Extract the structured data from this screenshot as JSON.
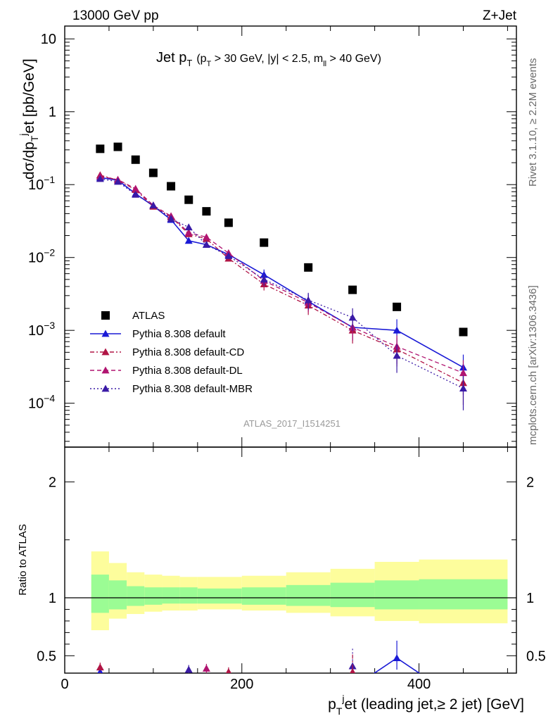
{
  "header": {
    "left": "13000 GeV pp",
    "right": "Z+Jet"
  },
  "side_labels": {
    "rivet": "Rivet 3.1.10, ≥ 2.2M events",
    "mcplots": "mcplots.cern.ch [arXiv:1306.3436]"
  },
  "analysis_id": "ATLAS_2017_I1514251",
  "chart_data": [
    {
      "type": "scatter",
      "panel": "main",
      "title": "Jet p_T (p_T > 30 GeV, |y| < 2.5, m_ll > 40 GeV)",
      "title_parts": {
        "main": "Jet p",
        "main_sub": "T",
        "cut1": "(p",
        "cut1_sub": "T",
        "cut2": " > 30 GeV, |y| < 2.5, m",
        "cut2_sub": "ll",
        "cut3": " > 40 GeV)"
      },
      "ylabel": "dσ/dp_T^jet [pb/GeV]",
      "ylabel_parts": {
        "a": "dσ/dp",
        "b": "T",
        "c": "j",
        "d": "et [pb/GeV]"
      },
      "yscale": "log",
      "ylim": [
        2.5e-05,
        15
      ],
      "xlim": [
        0,
        510
      ],
      "y_ticks": [
        {
          "v": 0.0001,
          "label": "10",
          "exp": "−4"
        },
        {
          "v": 0.001,
          "label": "10",
          "exp": "−3"
        },
        {
          "v": 0.01,
          "label": "10",
          "exp": "−2"
        },
        {
          "v": 0.1,
          "label": "10",
          "exp": "−1"
        },
        {
          "v": 1,
          "label": "1",
          "exp": ""
        },
        {
          "v": 10,
          "label": "10",
          "exp": ""
        }
      ],
      "legend_position": "bottom-left",
      "x": [
        40,
        60,
        80,
        100,
        120,
        140,
        160,
        185,
        225,
        275,
        325,
        375,
        450
      ],
      "series": [
        {
          "name": "ATLAS",
          "color": "#000000",
          "marker": "square",
          "dash": "none",
          "values": [
            0.31,
            0.33,
            0.22,
            0.145,
            0.095,
            0.062,
            0.043,
            0.03,
            0.016,
            0.0073,
            0.0036,
            0.0021,
            0.00095
          ]
        },
        {
          "name": "Pythia 8.308 default",
          "color": "#1a1ad6",
          "marker": "triangle",
          "dash": "none",
          "values": [
            0.125,
            0.115,
            0.075,
            0.051,
            0.033,
            0.017,
            0.015,
            0.011,
            0.0058,
            0.0025,
            0.0011,
            0.001,
            0.00031
          ]
        },
        {
          "name": "Pythia 8.308 default-CD",
          "color": "#b01445",
          "marker": "triangle",
          "dash": "6,3,2,3",
          "values": [
            0.135,
            0.115,
            0.085,
            0.05,
            0.036,
            0.021,
            0.018,
            0.0097,
            0.0043,
            0.0022,
            0.001,
            0.00055,
            0.00019
          ]
        },
        {
          "name": "Pythia 8.308 default-DL",
          "color": "#b01470",
          "marker": "triangle",
          "dash": "6,4",
          "values": [
            0.13,
            0.117,
            0.088,
            0.052,
            0.037,
            0.022,
            0.019,
            0.0115,
            0.0048,
            0.0024,
            0.0011,
            0.0006,
            0.00026
          ]
        },
        {
          "name": "Pythia 8.308 default-MBR",
          "color": "#3a1aa6",
          "marker": "triangle",
          "dash": "2,3",
          "values": [
            0.12,
            0.11,
            0.073,
            0.052,
            0.034,
            0.026,
            0.015,
            0.0105,
            0.005,
            0.0026,
            0.0015,
            0.00045,
            0.00016
          ]
        }
      ]
    },
    {
      "type": "scatter",
      "panel": "ratio",
      "ylabel": "Ratio to ATLAS",
      "xlabel": "p_T^jet (leading jet,≥ 2 jet) [GeV]",
      "xlabel_parts": {
        "a": "p",
        "b": "T",
        "c": "j",
        "d": "et (leading jet,≥ 2 jet) [GeV]"
      },
      "ylim": [
        0.35,
        2.3
      ],
      "xlim": [
        0,
        510
      ],
      "y_ticks": [
        0.5,
        1,
        2
      ],
      "x_ticks": [
        0,
        200,
        400
      ],
      "bands": [
        {
          "x0": 30,
          "x1": 50,
          "lo1": 0.87,
          "hi1": 1.2,
          "lo2": 0.72,
          "hi2": 1.4
        },
        {
          "x0": 50,
          "x1": 70,
          "lo1": 0.9,
          "hi1": 1.15,
          "lo2": 0.82,
          "hi2": 1.3
        },
        {
          "x0": 70,
          "x1": 90,
          "lo1": 0.93,
          "hi1": 1.1,
          "lo2": 0.86,
          "hi2": 1.22
        },
        {
          "x0": 90,
          "x1": 110,
          "lo1": 0.94,
          "hi1": 1.09,
          "lo2": 0.88,
          "hi2": 1.2
        },
        {
          "x0": 110,
          "x1": 130,
          "lo1": 0.95,
          "hi1": 1.09,
          "lo2": 0.89,
          "hi2": 1.19
        },
        {
          "x0": 130,
          "x1": 150,
          "lo1": 0.95,
          "hi1": 1.09,
          "lo2": 0.89,
          "hi2": 1.18
        },
        {
          "x0": 150,
          "x1": 170,
          "lo1": 0.95,
          "hi1": 1.08,
          "lo2": 0.9,
          "hi2": 1.18
        },
        {
          "x0": 170,
          "x1": 200,
          "lo1": 0.95,
          "hi1": 1.08,
          "lo2": 0.9,
          "hi2": 1.18
        },
        {
          "x0": 200,
          "x1": 250,
          "lo1": 0.94,
          "hi1": 1.09,
          "lo2": 0.89,
          "hi2": 1.19
        },
        {
          "x0": 250,
          "x1": 300,
          "lo1": 0.93,
          "hi1": 1.11,
          "lo2": 0.87,
          "hi2": 1.22
        },
        {
          "x0": 300,
          "x1": 350,
          "lo1": 0.92,
          "hi1": 1.13,
          "lo2": 0.84,
          "hi2": 1.25
        },
        {
          "x0": 350,
          "x1": 400,
          "lo1": 0.9,
          "hi1": 1.15,
          "lo2": 0.8,
          "hi2": 1.31
        },
        {
          "x0": 400,
          "x1": 500,
          "lo1": 0.9,
          "hi1": 1.16,
          "lo2": 0.78,
          "hi2": 1.33
        }
      ],
      "band_colors": {
        "inner": "#9bfc94",
        "outer": "#fdfd9c"
      },
      "points": [
        {
          "series": 1,
          "x": 40,
          "y": 0.36
        },
        {
          "series": 2,
          "x": 40,
          "y": 0.4
        },
        {
          "series": 4,
          "x": 140,
          "y": 0.38
        },
        {
          "series": 3,
          "x": 160,
          "y": 0.39
        },
        {
          "series": 2,
          "x": 185,
          "y": 0.36
        },
        {
          "series": 4,
          "x": 325,
          "y": 0.41
        },
        {
          "series": 2,
          "x": 325,
          "y": 0.36
        },
        {
          "series": 1,
          "x": 375,
          "y": 0.48
        }
      ]
    }
  ]
}
